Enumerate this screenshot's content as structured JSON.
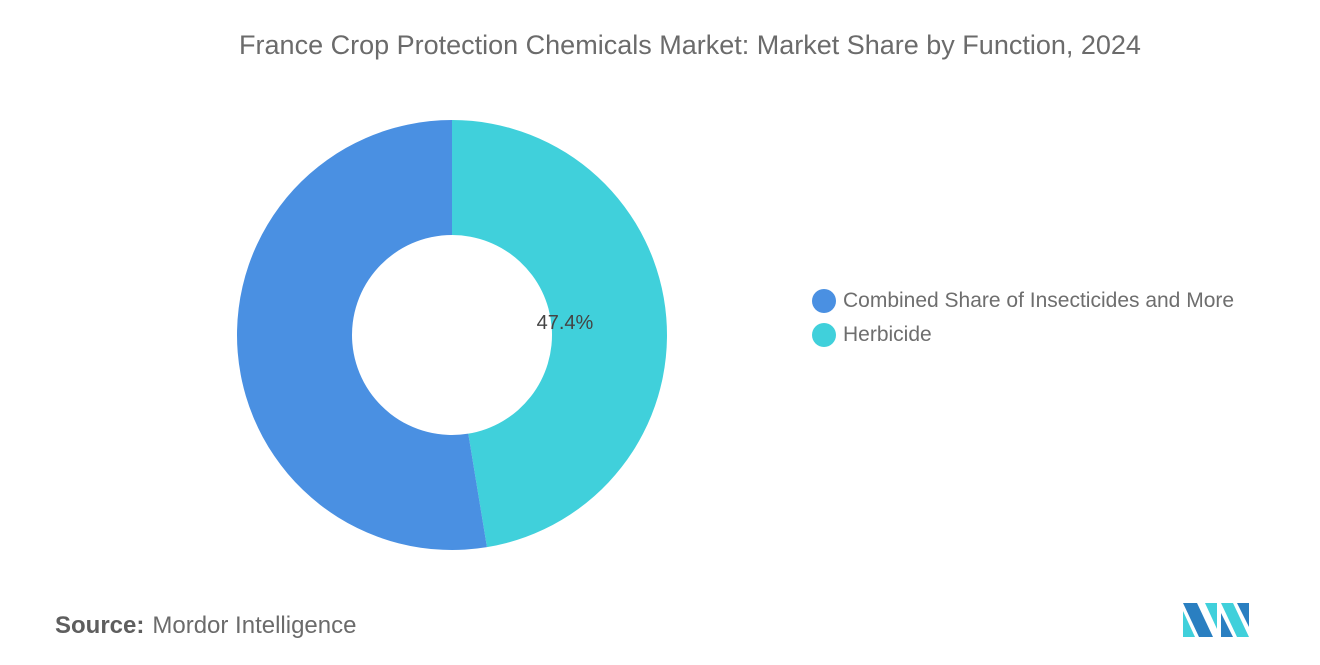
{
  "chart_data": {
    "type": "pie",
    "variant": "donut",
    "title": "France Crop Protection Chemicals Market: Market Share by Function, 2024",
    "categories": [
      "Combined Share of Insecticides and More",
      "Herbicide"
    ],
    "values": [
      52.6,
      47.4
    ],
    "unit": "%",
    "colors": [
      "#4a90e2",
      "#40d0db"
    ],
    "data_labels": [
      null,
      "47.4%"
    ],
    "legend_placement": "right"
  },
  "source": {
    "label": "Source:",
    "value": "Mordor Intelligence"
  },
  "logo": {
    "text": "Mordor Intelligence",
    "colors": [
      "#2a7fc1",
      "#40d0db"
    ]
  }
}
